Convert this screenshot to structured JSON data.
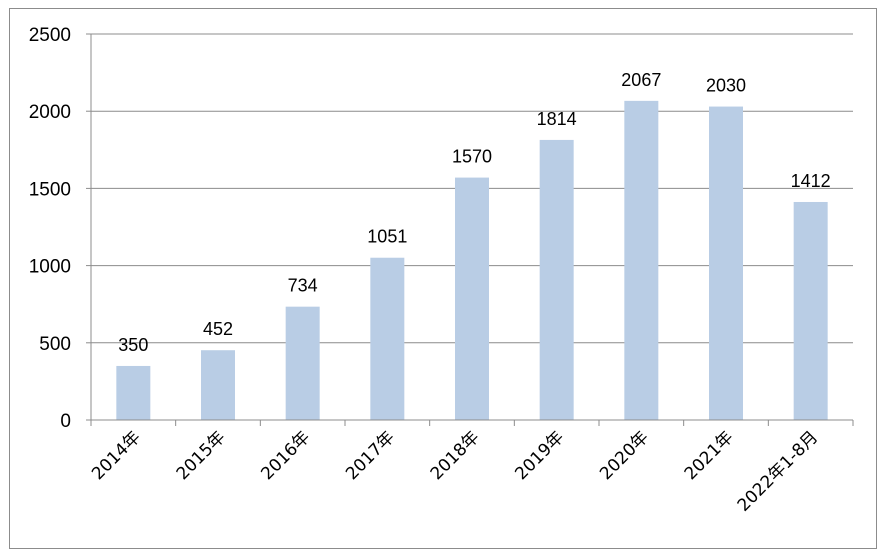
{
  "chart_data": {
    "type": "bar",
    "categories": [
      "2014年",
      "2015年",
      "2016年",
      "2017年",
      "2018年",
      "2019年",
      "2020年",
      "2021年",
      "2022年1-8月"
    ],
    "values": [
      350,
      452,
      734,
      1051,
      1570,
      1814,
      2067,
      2030,
      1412
    ],
    "data_labels": [
      "350",
      "452",
      "734",
      "1051",
      "1570",
      "1814",
      "2067",
      "2030",
      "1412"
    ],
    "ylim": [
      0,
      2500
    ],
    "yticks": [
      0,
      500,
      1000,
      1500,
      2000,
      2500
    ],
    "grid": true,
    "legend": "none",
    "bar_color": "#b9cde5",
    "grid_color": "#8c8c8c",
    "axis_color": "#8c8c8c"
  }
}
